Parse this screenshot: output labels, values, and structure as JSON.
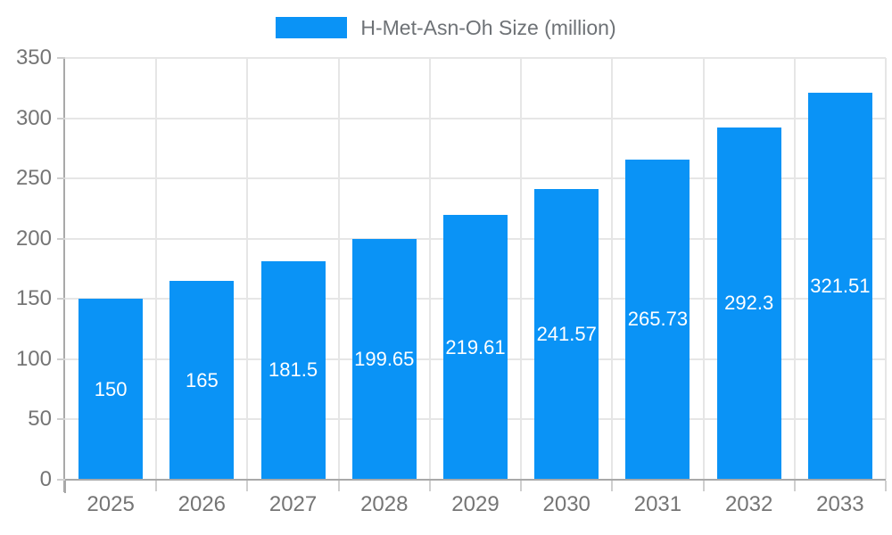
{
  "legend": {
    "label": "H-Met-Asn-Oh Size (million)"
  },
  "chart_data": {
    "type": "bar",
    "title": "H-Met-Asn-Oh Size (million)",
    "series_name": "H-Met-Asn-Oh Size (million)",
    "categories": [
      "2025",
      "2026",
      "2027",
      "2028",
      "2029",
      "2030",
      "2031",
      "2032",
      "2033"
    ],
    "values": [
      150,
      165,
      181.5,
      199.65,
      219.61,
      241.57,
      265.73,
      292.3,
      321.51
    ],
    "xlabel": "",
    "ylabel": "",
    "ylim": [
      0,
      350
    ],
    "ytick_step": 50,
    "grid": true,
    "legend_position": "top",
    "colors": {
      "bar": "#0a93f6",
      "grid_line": "#e6e6e6",
      "axis_line": "#a9a9a9",
      "tick": "#cfcfcf",
      "axis_text": "#757575",
      "legend_text": "#6e7276",
      "value_label_text": "#ffffff",
      "background": "#ffffff"
    }
  }
}
